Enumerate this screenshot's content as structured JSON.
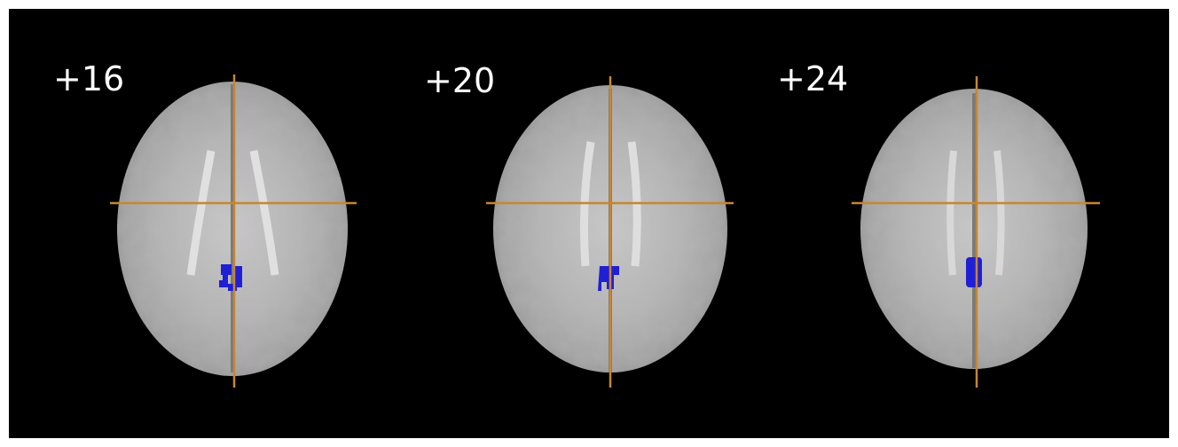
{
  "slices": [
    {
      "label": "+16"
    },
    {
      "label": "+20"
    },
    {
      "label": "+24"
    }
  ]
}
